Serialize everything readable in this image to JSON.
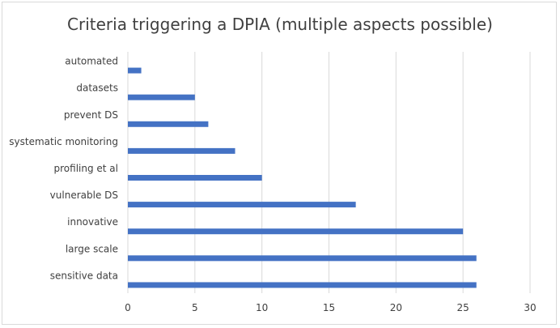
{
  "chart_data": {
    "type": "bar",
    "orientation": "horizontal",
    "title": "Criteria triggering a DPIA (multiple aspects possible)",
    "categories": [
      "automated",
      "datasets",
      "prevent DS",
      "systematic monitoring",
      "profiling et al",
      "vulnerable DS",
      "innovative",
      "large scale",
      "sensitive data"
    ],
    "values": [
      1,
      5,
      6,
      8,
      10,
      17,
      25,
      26,
      26
    ],
    "xlim": [
      0,
      30
    ],
    "xticks": [
      0,
      5,
      10,
      15,
      20,
      25,
      30
    ],
    "grid": true,
    "legend": "none",
    "bar_color": "#4472c4",
    "grid_color": "#d9d9d9"
  }
}
